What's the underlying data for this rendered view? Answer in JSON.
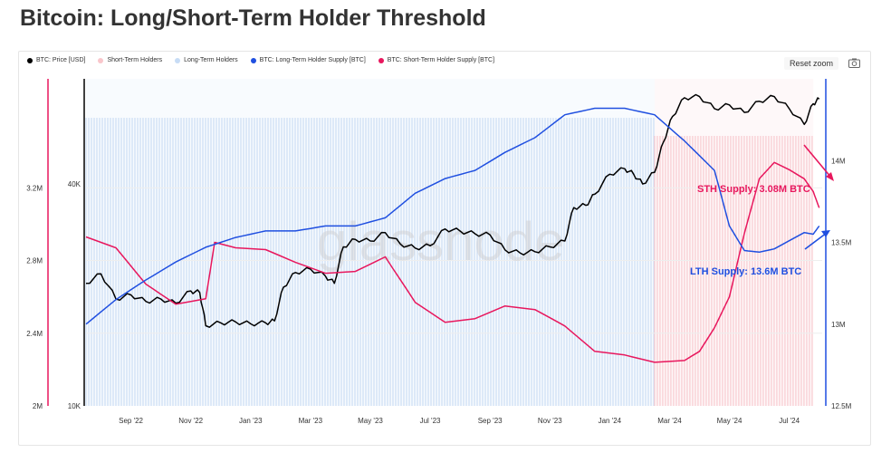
{
  "page_title": "Bitcoin: Long/Short-Term Holder Threshold",
  "legend": [
    {
      "label": "BTC: Price [USD]",
      "color": "#000000"
    },
    {
      "label": "Short-Term Holders",
      "color": "#f9c6cb"
    },
    {
      "label": "Long-Term Holders",
      "color": "#c7dcf5"
    },
    {
      "label": "BTC: Long-Term Holder Supply [BTC]",
      "color": "#1f4fe0"
    },
    {
      "label": "BTC: Short-Term Holder Supply [BTC]",
      "color": "#e8175d"
    }
  ],
  "toolbar": {
    "reset_zoom": "Reset zoom",
    "camera_icon": "camera-icon"
  },
  "watermark": "glassnode",
  "chart_data": {
    "type": "line",
    "title": "Bitcoin: Long/Short-Term Holder Threshold",
    "x_ticks": [
      "Sep '22",
      "Nov '22",
      "Jan '23",
      "Mar '23",
      "May '23",
      "Jul '23",
      "Sep '23",
      "Nov '23",
      "Jan '24",
      "Mar '24",
      "May '24",
      "Jul '24"
    ],
    "y_left_outer_ticks": [
      "2M",
      "2.4M",
      "2.8M",
      "3.2M"
    ],
    "y_left_inner_ticks": [
      "10K",
      "40K"
    ],
    "y_right_ticks": [
      "12.5M",
      "13M",
      "13.5M",
      "14M"
    ],
    "y_left_outer_range": [
      2000000,
      3800000
    ],
    "y_right_range": [
      12500000,
      14500000
    ],
    "background_regions": [
      {
        "name": "Long-Term Holders",
        "from_month": 0,
        "to_month": 19
      },
      {
        "name": "Short-Term Holders",
        "from_month": 19,
        "to_month": 24.3
      }
    ],
    "series": [
      {
        "name": "BTC: Price [USD]",
        "axis": "log-inner",
        "color": "#000000",
        "points": [
          [
            0,
            21500
          ],
          [
            0.5,
            22800
          ],
          [
            1,
            19500
          ],
          [
            1.5,
            20000
          ],
          [
            2,
            19200
          ],
          [
            2.5,
            19500
          ],
          [
            3,
            19000
          ],
          [
            3.5,
            20500
          ],
          [
            3.8,
            20300
          ],
          [
            4,
            16500
          ],
          [
            4.5,
            16800
          ],
          [
            5,
            16900
          ],
          [
            5.5,
            16700
          ],
          [
            6,
            16800
          ],
          [
            6.3,
            17000
          ],
          [
            6.6,
            21000
          ],
          [
            7,
            23000
          ],
          [
            7.5,
            23500
          ],
          [
            8,
            22500
          ],
          [
            8.3,
            21500
          ],
          [
            8.6,
            27000
          ],
          [
            9,
            28300
          ],
          [
            9.5,
            28000
          ],
          [
            10,
            29500
          ],
          [
            10.5,
            27500
          ],
          [
            11,
            26800
          ],
          [
            11.5,
            27200
          ],
          [
            12,
            30200
          ],
          [
            12.5,
            29800
          ],
          [
            13,
            29300
          ],
          [
            13.5,
            29100
          ],
          [
            14,
            26500
          ],
          [
            14.5,
            26000
          ],
          [
            15,
            26200
          ],
          [
            15.5,
            27000
          ],
          [
            16,
            28000
          ],
          [
            16.3,
            34500
          ],
          [
            16.7,
            35000
          ],
          [
            17,
            37500
          ],
          [
            17.5,
            42500
          ],
          [
            18,
            44000
          ],
          [
            18.3,
            42500
          ],
          [
            18.6,
            40000
          ],
          [
            19,
            43000
          ],
          [
            19.3,
            52000
          ],
          [
            19.6,
            61000
          ],
          [
            20,
            68500
          ],
          [
            20.5,
            69000
          ],
          [
            21,
            64000
          ],
          [
            21.5,
            65500
          ],
          [
            22,
            62500
          ],
          [
            22.5,
            67000
          ],
          [
            23,
            69000
          ],
          [
            23.5,
            64000
          ],
          [
            24,
            58000
          ],
          [
            24.3,
            66000
          ],
          [
            24.5,
            68000
          ]
        ]
      },
      {
        "name": "BTC: Short-Term Holder Supply [BTC]",
        "axis": "left-outer",
        "color": "#e8175d",
        "points": [
          [
            0,
            2930000
          ],
          [
            1,
            2870000
          ],
          [
            2,
            2670000
          ],
          [
            3,
            2560000
          ],
          [
            4,
            2590000
          ],
          [
            4.3,
            2900000
          ],
          [
            5,
            2870000
          ],
          [
            6,
            2860000
          ],
          [
            7,
            2790000
          ],
          [
            8,
            2730000
          ],
          [
            9,
            2740000
          ],
          [
            10,
            2820000
          ],
          [
            11,
            2570000
          ],
          [
            12,
            2460000
          ],
          [
            13,
            2480000
          ],
          [
            14,
            2550000
          ],
          [
            15,
            2530000
          ],
          [
            16,
            2440000
          ],
          [
            17,
            2300000
          ],
          [
            18,
            2280000
          ],
          [
            19,
            2240000
          ],
          [
            20,
            2250000
          ],
          [
            20.5,
            2300000
          ],
          [
            21,
            2430000
          ],
          [
            21.5,
            2600000
          ],
          [
            22,
            2950000
          ],
          [
            22.5,
            3250000
          ],
          [
            23,
            3340000
          ],
          [
            23.5,
            3300000
          ],
          [
            24,
            3250000
          ],
          [
            24.3,
            3180000
          ],
          [
            24.5,
            3090000
          ]
        ]
      },
      {
        "name": "BTC: Long-Term Holder Supply [BTC]",
        "axis": "right",
        "color": "#1f4fe0",
        "points": [
          [
            0,
            13000000
          ],
          [
            1,
            13150000
          ],
          [
            2,
            13270000
          ],
          [
            3,
            13380000
          ],
          [
            4,
            13470000
          ],
          [
            5,
            13530000
          ],
          [
            6,
            13570000
          ],
          [
            7,
            13570000
          ],
          [
            8,
            13600000
          ],
          [
            9,
            13600000
          ],
          [
            10,
            13650000
          ],
          [
            11,
            13800000
          ],
          [
            12,
            13890000
          ],
          [
            13,
            13940000
          ],
          [
            14,
            14050000
          ],
          [
            15,
            14140000
          ],
          [
            16,
            14280000
          ],
          [
            17,
            14320000
          ],
          [
            18,
            14320000
          ],
          [
            19,
            14280000
          ],
          [
            20,
            14120000
          ],
          [
            21,
            13940000
          ],
          [
            21.5,
            13600000
          ],
          [
            22,
            13450000
          ],
          [
            22.5,
            13440000
          ],
          [
            23,
            13460000
          ],
          [
            24,
            13560000
          ],
          [
            24.3,
            13550000
          ],
          [
            24.5,
            13600000
          ]
        ]
      }
    ]
  },
  "annotations": [
    {
      "text": "STH Supply: 3.08M BTC",
      "color": "#e8175d"
    },
    {
      "text": "LTH Supply: 13.6M BTC",
      "color": "#1f4fe0"
    }
  ]
}
